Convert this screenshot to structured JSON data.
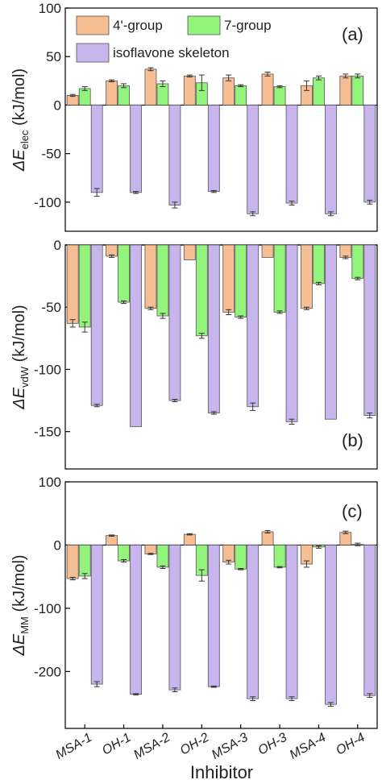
{
  "colors": {
    "group4": "#f7be93",
    "group7": "#93f47c",
    "skeleton": "#c9b5ee",
    "axis": "#000000",
    "errorbar": "#333333"
  },
  "legend": [
    "4'-group",
    "7-group",
    "isoflavone skeleton"
  ],
  "x_label": "Inhibitor",
  "chart_data": [
    {
      "type": "bar",
      "panel": "(a)",
      "ylabel_symbol": "ΔE",
      "ylabel_sub": "elec",
      "ylabel_unit": "(kJ/mol)",
      "ylim": [
        -130,
        100
      ],
      "yticks": [
        100,
        50,
        0,
        -50,
        -100
      ],
      "categories": [
        "MSA-1",
        "OH-1",
        "MSA-2",
        "OH-2",
        "MSA-3",
        "OH-3",
        "MSA-4",
        "OH-4"
      ],
      "series": [
        {
          "name": "4'-group",
          "values": [
            10,
            25,
            37,
            30,
            28,
            32,
            20,
            30
          ],
          "errors": [
            1,
            1,
            1.5,
            1,
            3,
            2,
            5,
            2
          ]
        },
        {
          "name": "7-group",
          "values": [
            17,
            20,
            22,
            23,
            20,
            19,
            28,
            30
          ],
          "errors": [
            2,
            2,
            3,
            8,
            1,
            1,
            2,
            2
          ]
        },
        {
          "name": "isoflavone skeleton",
          "values": [
            -90,
            -90,
            -103,
            -89,
            -112,
            -101,
            -112,
            -100
          ],
          "errors": [
            4,
            1,
            3,
            1,
            2,
            2,
            2,
            2
          ]
        }
      ]
    },
    {
      "type": "bar",
      "panel": "(b)",
      "ylabel_symbol": "ΔE",
      "ylabel_sub": "vdW",
      "ylabel_unit": "(kJ/mol)",
      "ylim": [
        -180,
        0
      ],
      "yticks": [
        0,
        -50,
        -100,
        -150
      ],
      "categories": [
        "MSA-1",
        "OH-1",
        "MSA-2",
        "OH-2",
        "MSA-3",
        "OH-3",
        "MSA-4",
        "OH-4"
      ],
      "series": [
        {
          "name": "4'-group",
          "values": [
            -63,
            -9,
            -51,
            -12,
            -54,
            -10,
            -51,
            -10
          ],
          "errors": [
            3,
            1,
            1,
            0,
            2,
            0,
            1,
            1
          ]
        },
        {
          "name": "7-group",
          "values": [
            -66,
            -46,
            -57,
            -73,
            -58,
            -54,
            -31,
            -27
          ],
          "errors": [
            4,
            1,
            2,
            2,
            1,
            1,
            1,
            1
          ]
        },
        {
          "name": "isoflavone skeleton",
          "values": [
            -129,
            -146,
            -125,
            -135,
            -130,
            -142,
            -140,
            -137
          ],
          "errors": [
            1,
            0,
            1,
            1,
            3,
            2,
            0,
            2
          ]
        }
      ]
    },
    {
      "type": "bar",
      "panel": "(c)",
      "ylabel_symbol": "ΔE",
      "ylabel_sub": "MM",
      "ylabel_unit": "(kJ/mol)",
      "ylim": [
        -290,
        100
      ],
      "yticks": [
        100,
        0,
        -100,
        -200
      ],
      "categories": [
        "MSA-1",
        "OH-1",
        "MSA-2",
        "OH-2",
        "MSA-3",
        "OH-3",
        "MSA-4",
        "OH-4"
      ],
      "series": [
        {
          "name": "4'-group",
          "values": [
            -53,
            15,
            -14,
            17,
            -27,
            21,
            -30,
            20
          ],
          "errors": [
            2,
            1,
            1,
            1,
            3,
            2,
            5,
            2
          ]
        },
        {
          "name": "7-group",
          "values": [
            -49,
            -25,
            -35,
            -48,
            -38,
            -35,
            -3,
            1
          ],
          "errors": [
            4,
            2,
            2,
            9,
            1,
            1,
            2,
            2
          ]
        },
        {
          "name": "isoflavone skeleton",
          "values": [
            -220,
            -236,
            -229,
            -224,
            -243,
            -243,
            -252,
            -238
          ],
          "errors": [
            4,
            1,
            3,
            1,
            3,
            3,
            3,
            3
          ]
        }
      ]
    }
  ]
}
